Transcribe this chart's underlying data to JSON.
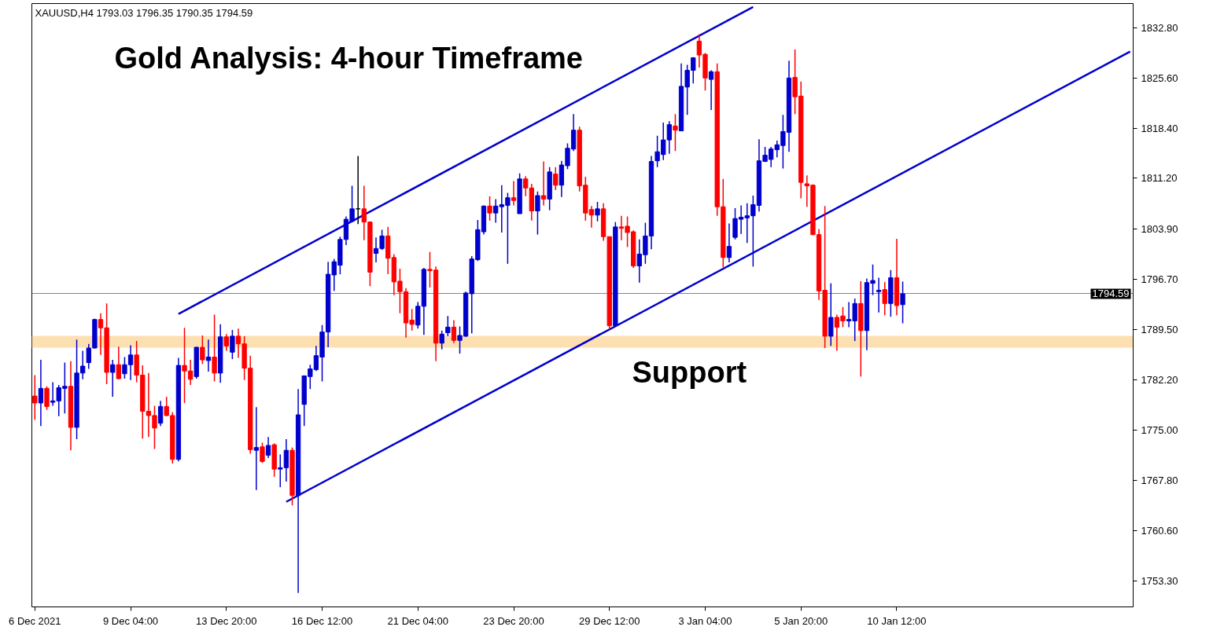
{
  "chart_data": {
    "type": "candlestick",
    "title": "Gold Analysis: 4-hour Timeframe",
    "subtitle": "XAUUSD,H4  1793.03 1796.35 1790.35 1794.59",
    "categories": [
      "6 Dec 2021",
      null,
      null,
      null,
      null,
      null,
      null,
      null,
      null,
      null,
      null,
      null,
      null,
      null,
      null,
      null,
      "9 Dec 04:00",
      null,
      null,
      null,
      null,
      null,
      null,
      null,
      null,
      null,
      null,
      null,
      null,
      null,
      null,
      null,
      "13 Dec 20:00",
      null,
      null,
      null,
      null,
      null,
      null,
      null,
      null,
      null,
      null,
      null,
      null,
      null,
      null,
      null,
      "16 Dec 12:00",
      null,
      null,
      null,
      null,
      null,
      null,
      null,
      null,
      null,
      null,
      null,
      null,
      null,
      null,
      null,
      "21 Dec 04:00",
      null,
      null,
      null,
      null,
      null,
      null,
      null,
      null,
      null,
      null,
      null,
      null,
      null,
      null,
      null,
      "23 Dec 20:00",
      null,
      null,
      null,
      null,
      null,
      null,
      null,
      null,
      null,
      null,
      null,
      null,
      null,
      null,
      null,
      "29 Dec 12:00",
      null,
      null,
      null,
      null,
      null,
      null,
      null,
      null,
      null,
      null,
      null,
      null,
      null,
      null,
      null,
      "3 Jan 04:00",
      null,
      null,
      null,
      null,
      null,
      null,
      null,
      null,
      null,
      null,
      null,
      null,
      null,
      null,
      null,
      "5 Jan 20:00",
      null,
      null,
      null,
      null,
      null,
      null,
      null,
      null,
      null,
      null,
      null,
      null,
      null,
      null,
      null,
      "10 Jan 12:00",
      null,
      null,
      null,
      null,
      null,
      null,
      null,
      null,
      null,
      null,
      null,
      null,
      null,
      null,
      null,
      null,
      null,
      null,
      null,
      null,
      null,
      null,
      null,
      null,
      null,
      null,
      null,
      null,
      null,
      null,
      null,
      null,
      null,
      null,
      null,
      null,
      null,
      null,
      null
    ],
    "ohlc": [
      [
        1779.9,
        1782.9,
        1776.5,
        1778.9
      ],
      [
        1778.9,
        1785.1,
        1775.6,
        1781.0
      ],
      [
        1781.0,
        1781.3,
        1777.9,
        1778.4
      ],
      [
        1779.0,
        1781.9,
        1778.5,
        1779.2
      ],
      [
        1779.2,
        1781.5,
        1777.0,
        1781.1
      ],
      [
        1781.0,
        1784.7,
        1777.4,
        1781.3
      ],
      [
        1781.3,
        1784.9,
        1772.1,
        1775.4
      ],
      [
        1775.4,
        1788.0,
        1773.7,
        1783.2
      ],
      [
        1783.2,
        1786.4,
        1782.3,
        1784.2
      ],
      [
        1784.7,
        1787.4,
        1783.8,
        1786.8
      ],
      [
        1786.8,
        1791.0,
        1786.7,
        1790.9
      ],
      [
        1790.9,
        1791.8,
        1785.8,
        1789.7
      ],
      [
        1789.7,
        1793.2,
        1781.6,
        1783.3
      ],
      [
        1783.3,
        1785.1,
        1779.8,
        1784.4
      ],
      [
        1784.4,
        1787.0,
        1782.3,
        1782.4
      ],
      [
        1783.1,
        1785.5,
        1782.4,
        1784.4
      ],
      [
        1784.4,
        1787.2,
        1782.2,
        1785.8
      ],
      [
        1785.8,
        1787.8,
        1781.9,
        1782.9
      ],
      [
        1782.9,
        1784.3,
        1773.8,
        1777.7
      ],
      [
        1777.7,
        1783.2,
        1774.0,
        1777.1
      ],
      [
        1777.1,
        1778.5,
        1772.3,
        1775.3
      ],
      [
        1776.0,
        1779.2,
        1775.6,
        1778.4
      ],
      [
        1778.4,
        1779.8,
        1777.0,
        1777.1
      ],
      [
        1777.1,
        1777.6,
        1770.2,
        1770.8
      ],
      [
        1770.8,
        1785.4,
        1770.5,
        1784.3
      ],
      [
        1784.3,
        1789.7,
        1778.9,
        1783.5
      ],
      [
        1783.5,
        1785.1,
        1781.5,
        1782.3
      ],
      [
        1782.7,
        1787.0,
        1782.4,
        1786.9
      ],
      [
        1786.9,
        1788.6,
        1784.5,
        1785.1
      ],
      [
        1785.0,
        1788.0,
        1783.4,
        1785.5
      ],
      [
        1785.5,
        1791.6,
        1782.0,
        1783.2
      ],
      [
        1783.2,
        1790.2,
        1781.8,
        1788.4
      ],
      [
        1788.4,
        1788.8,
        1786.4,
        1787.1
      ],
      [
        1786.2,
        1789.4,
        1785.2,
        1788.5
      ],
      [
        1788.5,
        1789.6,
        1785.4,
        1787.4
      ],
      [
        1787.4,
        1788.5,
        1782.2,
        1783.9
      ],
      [
        1783.9,
        1785.7,
        1771.6,
        1772.2
      ],
      [
        1772.1,
        1778.3,
        1766.4,
        1772.5
      ],
      [
        1772.6,
        1773.2,
        1770.3,
        1770.5
      ],
      [
        1771.4,
        1774.0,
        1771.0,
        1772.8
      ],
      [
        1772.9,
        1773.1,
        1768.3,
        1769.4
      ],
      [
        1769.4,
        1771.5,
        1766.8,
        1769.6
      ],
      [
        1769.6,
        1773.7,
        1767.6,
        1772.1
      ],
      [
        1772.1,
        1772.5,
        1764.2,
        1765.6
      ],
      [
        1765.6,
        1780.9,
        1751.6,
        1777.2
      ],
      [
        1778.7,
        1782.8,
        1775.6,
        1782.8
      ],
      [
        1782.7,
        1784.4,
        1780.9,
        1783.8
      ],
      [
        1783.7,
        1787.1,
        1783.5,
        1785.7
      ],
      [
        1785.5,
        1790.1,
        1782.0,
        1789.1
      ],
      [
        1789.1,
        1799.2,
        1786.9,
        1797.4
      ],
      [
        1797.3,
        1799.6,
        1795.0,
        1799.2
      ],
      [
        1798.7,
        1802.8,
        1797.4,
        1802.4
      ],
      [
        1802.4,
        1805.7,
        1801.6,
        1805.3
      ],
      [
        1805.0,
        1810.1,
        1804.9,
        1806.8
      ],
      [
        1806.8,
        1814.4,
        1804.6,
        1806.8
      ],
      [
        1806.8,
        1810.1,
        1802.3,
        1804.9
      ],
      [
        1804.9,
        1805.0,
        1795.7,
        1797.7
      ],
      [
        1800.4,
        1802.7,
        1799.1,
        1801.1
      ],
      [
        1801.1,
        1803.8,
        1800.9,
        1802.9
      ],
      [
        1802.9,
        1804.2,
        1797.4,
        1799.7
      ],
      [
        1799.8,
        1800.3,
        1794.4,
        1796.3
      ],
      [
        1796.4,
        1798.2,
        1791.8,
        1794.9
      ],
      [
        1794.9,
        1795.4,
        1788.3,
        1790.4
      ],
      [
        1790.8,
        1792.4,
        1789.3,
        1790.2
      ],
      [
        1790.1,
        1793.4,
        1789.6,
        1792.8
      ],
      [
        1792.8,
        1798.3,
        1788.7,
        1798.1
      ],
      [
        1798.1,
        1800.6,
        1795.5,
        1797.9
      ],
      [
        1798.0,
        1798.5,
        1784.9,
        1787.5
      ],
      [
        1787.5,
        1789.3,
        1786.6,
        1788.8
      ],
      [
        1789.0,
        1791.4,
        1788.5,
        1789.8
      ],
      [
        1789.8,
        1790.8,
        1787.5,
        1787.9
      ],
      [
        1787.9,
        1789.9,
        1786.0,
        1788.6
      ],
      [
        1788.5,
        1794.9,
        1788.4,
        1794.7
      ],
      [
        1794.6,
        1800.0,
        1788.9,
        1799.6
      ],
      [
        1799.5,
        1805.2,
        1799.3,
        1803.8
      ],
      [
        1803.5,
        1807.3,
        1803.1,
        1807.2
      ],
      [
        1807.2,
        1808.6,
        1805.1,
        1806.2
      ],
      [
        1806.2,
        1808.2,
        1804.8,
        1807.2
      ],
      [
        1807.1,
        1810.2,
        1803.4,
        1807.4
      ],
      [
        1807.3,
        1809.1,
        1798.9,
        1808.4
      ],
      [
        1808.4,
        1810.8,
        1807.3,
        1808.0
      ],
      [
        1806.1,
        1811.9,
        1806.1,
        1811.1
      ],
      [
        1811.1,
        1811.5,
        1808.6,
        1809.8
      ],
      [
        1809.8,
        1810.4,
        1805.1,
        1806.5
      ],
      [
        1806.5,
        1809.3,
        1803.1,
        1808.7
      ],
      [
        1808.7,
        1813.6,
        1807.3,
        1808.2
      ],
      [
        1808.2,
        1812.8,
        1806.6,
        1812.1
      ],
      [
        1811.8,
        1812.8,
        1809.5,
        1810.2
      ],
      [
        1810.2,
        1813.7,
        1808.5,
        1813.1
      ],
      [
        1813.0,
        1816.2,
        1812.5,
        1815.5
      ],
      [
        1815.4,
        1820.4,
        1815.1,
        1818.1
      ],
      [
        1818.1,
        1818.6,
        1809.3,
        1810.1
      ],
      [
        1810.2,
        1811.4,
        1805.1,
        1806.2
      ],
      [
        1806.7,
        1807.2,
        1804.1,
        1805.9
      ],
      [
        1805.9,
        1807.8,
        1805.0,
        1806.8
      ],
      [
        1806.8,
        1807.6,
        1802.2,
        1802.8
      ],
      [
        1802.8,
        1802.8,
        1789.5,
        1790.0
      ],
      [
        1790.0,
        1804.9,
        1790.0,
        1804.2
      ],
      [
        1804.2,
        1805.8,
        1802.3,
        1804.0
      ],
      [
        1804.3,
        1805.7,
        1801.3,
        1803.4
      ],
      [
        1803.5,
        1803.7,
        1798.3,
        1798.6
      ],
      [
        1798.6,
        1802.4,
        1796.2,
        1800.3
      ],
      [
        1800.2,
        1804.8,
        1798.9,
        1802.9
      ],
      [
        1802.9,
        1814.4,
        1801.0,
        1813.6
      ],
      [
        1813.7,
        1817.3,
        1812.8,
        1815.0
      ],
      [
        1814.6,
        1819.2,
        1813.8,
        1816.7
      ],
      [
        1816.7,
        1819.4,
        1814.7,
        1818.9
      ],
      [
        1818.7,
        1820.4,
        1815.1,
        1818.1
      ],
      [
        1818.0,
        1827.7,
        1818.0,
        1824.4
      ],
      [
        1824.3,
        1827.5,
        1820.3,
        1826.7
      ],
      [
        1826.7,
        1828.6,
        1824.8,
        1828.5
      ],
      [
        1830.9,
        1831.9,
        1827.1,
        1828.9
      ],
      [
        1829.0,
        1829.2,
        1823.8,
        1825.6
      ],
      [
        1825.4,
        1826.7,
        1821.0,
        1826.5
      ],
      [
        1826.5,
        1827.7,
        1805.8,
        1807.1
      ],
      [
        1807.1,
        1811.1,
        1798.4,
        1799.8
      ],
      [
        1799.8,
        1804.7,
        1799.1,
        1801.4
      ],
      [
        1802.7,
        1806.9,
        1802.4,
        1805.4
      ],
      [
        1805.3,
        1807.3,
        1803.2,
        1805.6
      ],
      [
        1805.5,
        1807.6,
        1801.9,
        1805.8
      ],
      [
        1805.8,
        1808.7,
        1798.5,
        1807.4
      ],
      [
        1807.3,
        1816.8,
        1806.4,
        1813.7
      ],
      [
        1813.6,
        1815.7,
        1813.6,
        1814.5
      ],
      [
        1813.9,
        1815.7,
        1812.8,
        1815.4
      ],
      [
        1815.3,
        1816.6,
        1814.2,
        1816.0
      ],
      [
        1815.9,
        1820.3,
        1812.6,
        1817.9
      ],
      [
        1817.8,
        1828.1,
        1815.0,
        1825.6
      ],
      [
        1825.7,
        1829.7,
        1820.4,
        1822.9
      ],
      [
        1823.0,
        1825.1,
        1808.3,
        1810.6
      ],
      [
        1810.4,
        1811.6,
        1807.1,
        1810.1
      ],
      [
        1810.2,
        1810.3,
        1803.0,
        1803.1
      ],
      [
        1803.1,
        1803.9,
        1793.7,
        1795.0
      ],
      [
        1795.1,
        1807.2,
        1786.8,
        1788.5
      ],
      [
        1788.5,
        1796.1,
        1787.1,
        1791.2
      ],
      [
        1791.2,
        1791.6,
        1786.4,
        1789.8
      ],
      [
        1791.4,
        1792.7,
        1789.8,
        1790.7
      ],
      [
        1790.7,
        1793.4,
        1789.8,
        1790.9
      ],
      [
        1790.7,
        1793.9,
        1787.8,
        1793.2
      ],
      [
        1793.2,
        1796.4,
        1782.7,
        1789.3
      ],
      [
        1789.3,
        1796.8,
        1786.5,
        1796.2
      ],
      [
        1796.1,
        1798.8,
        1794.4,
        1796.5
      ],
      [
        1794.9,
        1796.9,
        1791.9,
        1795.1
      ],
      [
        1795.2,
        1796.3,
        1791.5,
        1793.2
      ],
      [
        1793.2,
        1798.0,
        1791.3,
        1796.9
      ],
      [
        1796.9,
        1802.5,
        1791.5,
        1792.9
      ],
      [
        1793.03,
        1796.35,
        1790.35,
        1794.59
      ],
      null,
      null,
      null,
      null,
      null,
      null,
      null,
      null,
      null,
      null,
      null,
      null,
      null,
      null,
      null,
      null,
      null,
      null,
      null,
      null,
      null,
      null,
      null,
      null,
      null,
      null,
      null,
      null,
      null,
      null,
      null,
      null,
      null,
      null,
      null,
      null,
      null,
      null
    ],
    "colors": [
      "#ff0000",
      "#0000cc",
      "#ff0000",
      "#0000cc",
      "#0000cc",
      "#0000cc",
      "#ff0000",
      "#0000cc",
      "#0000cc",
      "#0000cc",
      "#0000cc",
      "#ff0000",
      "#ff0000",
      "#0000cc",
      "#ff0000",
      "#0000cc",
      "#0000cc",
      "#ff0000",
      "#ff0000",
      "#ff0000",
      "#ff0000",
      "#0000cc",
      "#ff0000",
      "#ff0000",
      "#0000cc",
      "#ff0000",
      "#ff0000",
      "#0000cc",
      "#ff0000",
      "#0000cc",
      "#ff0000",
      "#0000cc",
      "#ff0000",
      "#0000cc",
      "#ff0000",
      "#ff0000",
      "#ff0000",
      "#0000cc",
      "#ff0000",
      "#0000cc",
      "#ff0000",
      "#0000cc",
      "#0000cc",
      "#ff0000",
      "#0000cc",
      "#0000cc",
      "#0000cc",
      "#0000cc",
      "#0000cc",
      "#0000cc",
      "#0000cc",
      "#0000cc",
      "#0000cc",
      "#0000cc",
      "#000000",
      "#ff0000",
      "#ff0000",
      "#0000cc",
      "#0000cc",
      "#ff0000",
      "#ff0000",
      "#ff0000",
      "#ff0000",
      "#ff0000",
      "#0000cc",
      "#0000cc",
      "#ff0000",
      "#ff0000",
      "#0000cc",
      "#0000cc",
      "#ff0000",
      "#0000cc",
      "#0000cc",
      "#0000cc",
      "#0000cc",
      "#0000cc",
      "#ff0000",
      "#0000cc",
      "#0000cc",
      "#0000cc",
      "#ff0000",
      "#0000cc",
      "#ff0000",
      "#ff0000",
      "#0000cc",
      "#ff0000",
      "#0000cc",
      "#ff0000",
      "#0000cc",
      "#0000cc",
      "#0000cc",
      "#ff0000",
      "#ff0000",
      "#ff0000",
      "#0000cc",
      "#ff0000",
      "#ff0000",
      "#0000cc",
      "#ff0000",
      "#ff0000",
      "#ff0000",
      "#0000cc",
      "#0000cc",
      "#0000cc",
      "#0000cc",
      "#0000cc",
      "#0000cc",
      "#ff0000",
      "#0000cc",
      "#0000cc",
      "#0000cc",
      "#ff0000",
      "#ff0000",
      "#0000cc",
      "#ff0000",
      "#ff0000",
      "#0000cc",
      "#0000cc",
      "#0000cc",
      "#0000cc",
      "#0000cc",
      "#0000cc",
      "#0000cc",
      "#0000cc",
      "#0000cc",
      "#0000cc",
      "#0000cc",
      "#ff0000",
      "#ff0000",
      "#ff0000",
      "#ff0000",
      "#ff0000",
      "#ff0000",
      "#0000cc",
      "#ff0000",
      "#ff0000",
      "#0000cc",
      "#0000cc",
      "#ff0000",
      "#0000cc",
      "#0000cc",
      "#0000cc",
      "#ff0000",
      "#0000cc",
      "#ff0000",
      "#0000cc",
      null,
      null,
      null,
      null,
      null,
      null,
      null,
      null,
      null,
      null,
      null,
      null,
      null,
      null,
      null,
      null,
      null,
      null,
      null,
      null,
      null,
      null,
      null,
      null,
      null,
      null,
      null,
      null,
      null,
      null,
      null,
      null,
      null,
      null,
      null,
      null,
      null,
      null
    ],
    "series": [
      {
        "type": "line",
        "color": "#0000cc",
        "values": [
          null,
          null,
          null,
          null,
          null,
          null,
          null,
          null,
          null,
          null,
          null,
          null,
          null,
          null,
          null,
          null,
          null,
          null,
          null,
          null,
          null,
          null,
          null,
          null,
          1791.7,
          null,
          null,
          null,
          null,
          null,
          null,
          null,
          null,
          null,
          null,
          null,
          null,
          null,
          null,
          null,
          null,
          null,
          null,
          null,
          null,
          null,
          null,
          null,
          null,
          null,
          null,
          null,
          null,
          null,
          null,
          null,
          null,
          null,
          null,
          null,
          null,
          null,
          null,
          null,
          null,
          null,
          null,
          null,
          null,
          null,
          null,
          null,
          null,
          null,
          null,
          null,
          null,
          null,
          null,
          null,
          null,
          null,
          null,
          null,
          null,
          null,
          null,
          null,
          null,
          null,
          null,
          null,
          null,
          null,
          null,
          null,
          null,
          null,
          null,
          null,
          null,
          null,
          null,
          null,
          null,
          null,
          null,
          null,
          null,
          null,
          null,
          null,
          null,
          null,
          null,
          null,
          null,
          null,
          null,
          null,
          1835.8,
          null,
          null,
          null,
          null,
          null,
          null,
          null,
          null,
          null,
          null,
          null,
          null,
          null,
          null,
          null,
          null,
          null,
          null,
          null,
          null,
          null,
          null,
          null,
          null,
          null,
          null,
          null,
          null,
          null,
          null,
          null,
          null,
          null,
          null,
          null,
          null,
          null,
          null,
          null,
          null,
          null,
          null,
          null,
          null,
          null,
          null,
          null,
          null,
          null,
          null,
          null,
          null,
          null,
          null,
          null,
          null,
          null,
          null,
          null,
          null,
          null,
          null,
          null
        ]
      },
      {
        "type": "line",
        "color": "#0000cc",
        "values": [
          null,
          null,
          null,
          null,
          null,
          null,
          null,
          null,
          null,
          null,
          null,
          null,
          null,
          null,
          null,
          null,
          null,
          null,
          null,
          null,
          null,
          null,
          null,
          null,
          null,
          null,
          null,
          null,
          null,
          null,
          null,
          null,
          null,
          null,
          null,
          null,
          null,
          null,
          null,
          null,
          null,
          null,
          1764.7,
          null,
          null,
          null,
          null,
          null,
          null,
          null,
          null,
          null,
          null,
          null,
          null,
          null,
          null,
          null,
          null,
          null,
          null,
          null,
          null,
          null,
          null,
          null,
          null,
          null,
          null,
          null,
          null,
          null,
          null,
          null,
          null,
          null,
          null,
          null,
          null,
          null,
          null,
          null,
          null,
          null,
          null,
          null,
          null,
          null,
          null,
          null,
          null,
          null,
          null,
          null,
          null,
          null,
          null,
          null,
          null,
          null,
          null,
          null,
          null,
          null,
          null,
          null,
          null,
          null,
          null,
          null,
          null,
          null,
          null,
          null,
          null,
          null,
          null,
          null,
          null,
          null,
          null,
          null,
          null,
          null,
          null,
          null,
          null,
          null,
          null,
          null,
          null,
          null,
          null,
          null,
          null,
          null,
          null,
          null,
          null,
          null,
          null,
          null,
          null,
          null,
          null,
          null,
          null,
          null,
          null,
          null,
          null,
          null,
          null,
          null,
          null,
          null,
          null,
          null,
          null,
          null,
          null,
          null,
          null,
          null,
          null,
          null,
          null,
          null,
          null,
          null,
          null,
          null,
          null,
          null,
          null,
          null,
          null,
          null,
          null,
          null,
          null,
          null,
          null,
          1829.4
        ]
      }
    ],
    "ylim": [
      1749.6,
      1836.3
    ],
    "yticks": [
      {
        "value": 1753.3,
        "label": "1753.30"
      },
      {
        "value": 1760.6,
        "label": "1760.60"
      },
      {
        "value": 1767.8,
        "label": "1767.80"
      },
      {
        "value": 1775.0,
        "label": "1775.00"
      },
      {
        "value": 1782.2,
        "label": "1782.20"
      },
      {
        "value": 1789.5,
        "label": "1789.50"
      },
      {
        "value": 1796.7,
        "label": "1796.70"
      },
      {
        "value": 1803.9,
        "label": "1803.90"
      },
      {
        "value": 1811.2,
        "label": "1811.20"
      },
      {
        "value": 1818.4,
        "label": "1818.40"
      },
      {
        "value": 1825.6,
        "label": "1825.60"
      },
      {
        "value": 1832.8,
        "label": "1832.80"
      }
    ],
    "bands": [
      {
        "axis": "y",
        "from": 1786.8,
        "to": 1788.6,
        "label": "Support",
        "color": "#fde0b2"
      }
    ],
    "ref_lines": [
      {
        "axis": "y",
        "value": 1794.59,
        "label": "1794.59",
        "color": "#778899"
      }
    ]
  }
}
